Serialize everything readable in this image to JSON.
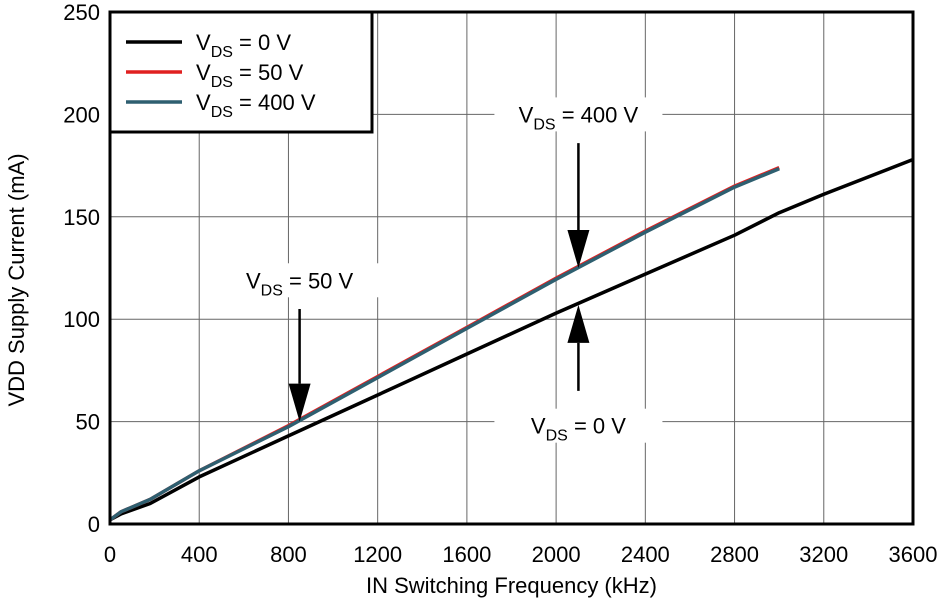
{
  "chart_data": {
    "type": "line",
    "title": "",
    "xlabel": "IN Switching Frequency (kHz)",
    "ylabel": "VDD Supply Current (mA)",
    "xlim": [
      0,
      3600
    ],
    "ylim": [
      0,
      250
    ],
    "xticks": [
      0,
      400,
      800,
      1200,
      1600,
      2000,
      2400,
      2800,
      3200,
      3600
    ],
    "yticks": [
      0,
      50,
      100,
      150,
      200,
      250
    ],
    "grid": true,
    "legend_position": "top-left",
    "series": [
      {
        "name_main": "V",
        "name_sub": "DS",
        "name_rest": " = 0 V",
        "color": "#000000",
        "x": [
          0,
          50,
          180,
          400,
          800,
          1200,
          1600,
          2000,
          2400,
          2800,
          3000,
          3200,
          3600
        ],
        "y": [
          2,
          5,
          10,
          23,
          43,
          63,
          83,
          103,
          122,
          141,
          152,
          161,
          178
        ]
      },
      {
        "name_main": "V",
        "name_sub": "DS",
        "name_rest": " = 50 V",
        "color": "#e02020",
        "x": [
          0,
          50,
          180,
          400,
          800,
          1200,
          1600,
          2000,
          2400,
          2800,
          3000
        ],
        "y": [
          2,
          6,
          12,
          26,
          48,
          72,
          96,
          120,
          143,
          165,
          174
        ]
      },
      {
        "name_main": "V",
        "name_sub": "DS",
        "name_rest": " = 400 V",
        "color": "#2e5f70",
        "x": [
          0,
          50,
          180,
          400,
          800,
          1200,
          1600,
          2000,
          2400,
          2800,
          3000
        ],
        "y": [
          2,
          6,
          12,
          26,
          47.5,
          71.5,
          95.5,
          119.5,
          142.5,
          164.5,
          173.5
        ]
      }
    ],
    "annotations": [
      {
        "main": "V",
        "sub": "DS",
        "rest": " = 400 V",
        "label_x": 2100,
        "label_y": 200,
        "arrow_x": 2100,
        "arrow_from_y": 186,
        "arrow_to_y": 125
      },
      {
        "main": "V",
        "sub": "DS",
        "rest": " = 50 V",
        "label_x": 850,
        "label_y": 119,
        "arrow_x": 850,
        "arrow_from_y": 105,
        "arrow_to_y": 50
      },
      {
        "main": "V",
        "sub": "DS",
        "rest": " = 0 V",
        "label_x": 2100,
        "label_y": 48,
        "arrow_x": 2100,
        "arrow_from_y": 65,
        "arrow_to_y": 107
      }
    ]
  }
}
